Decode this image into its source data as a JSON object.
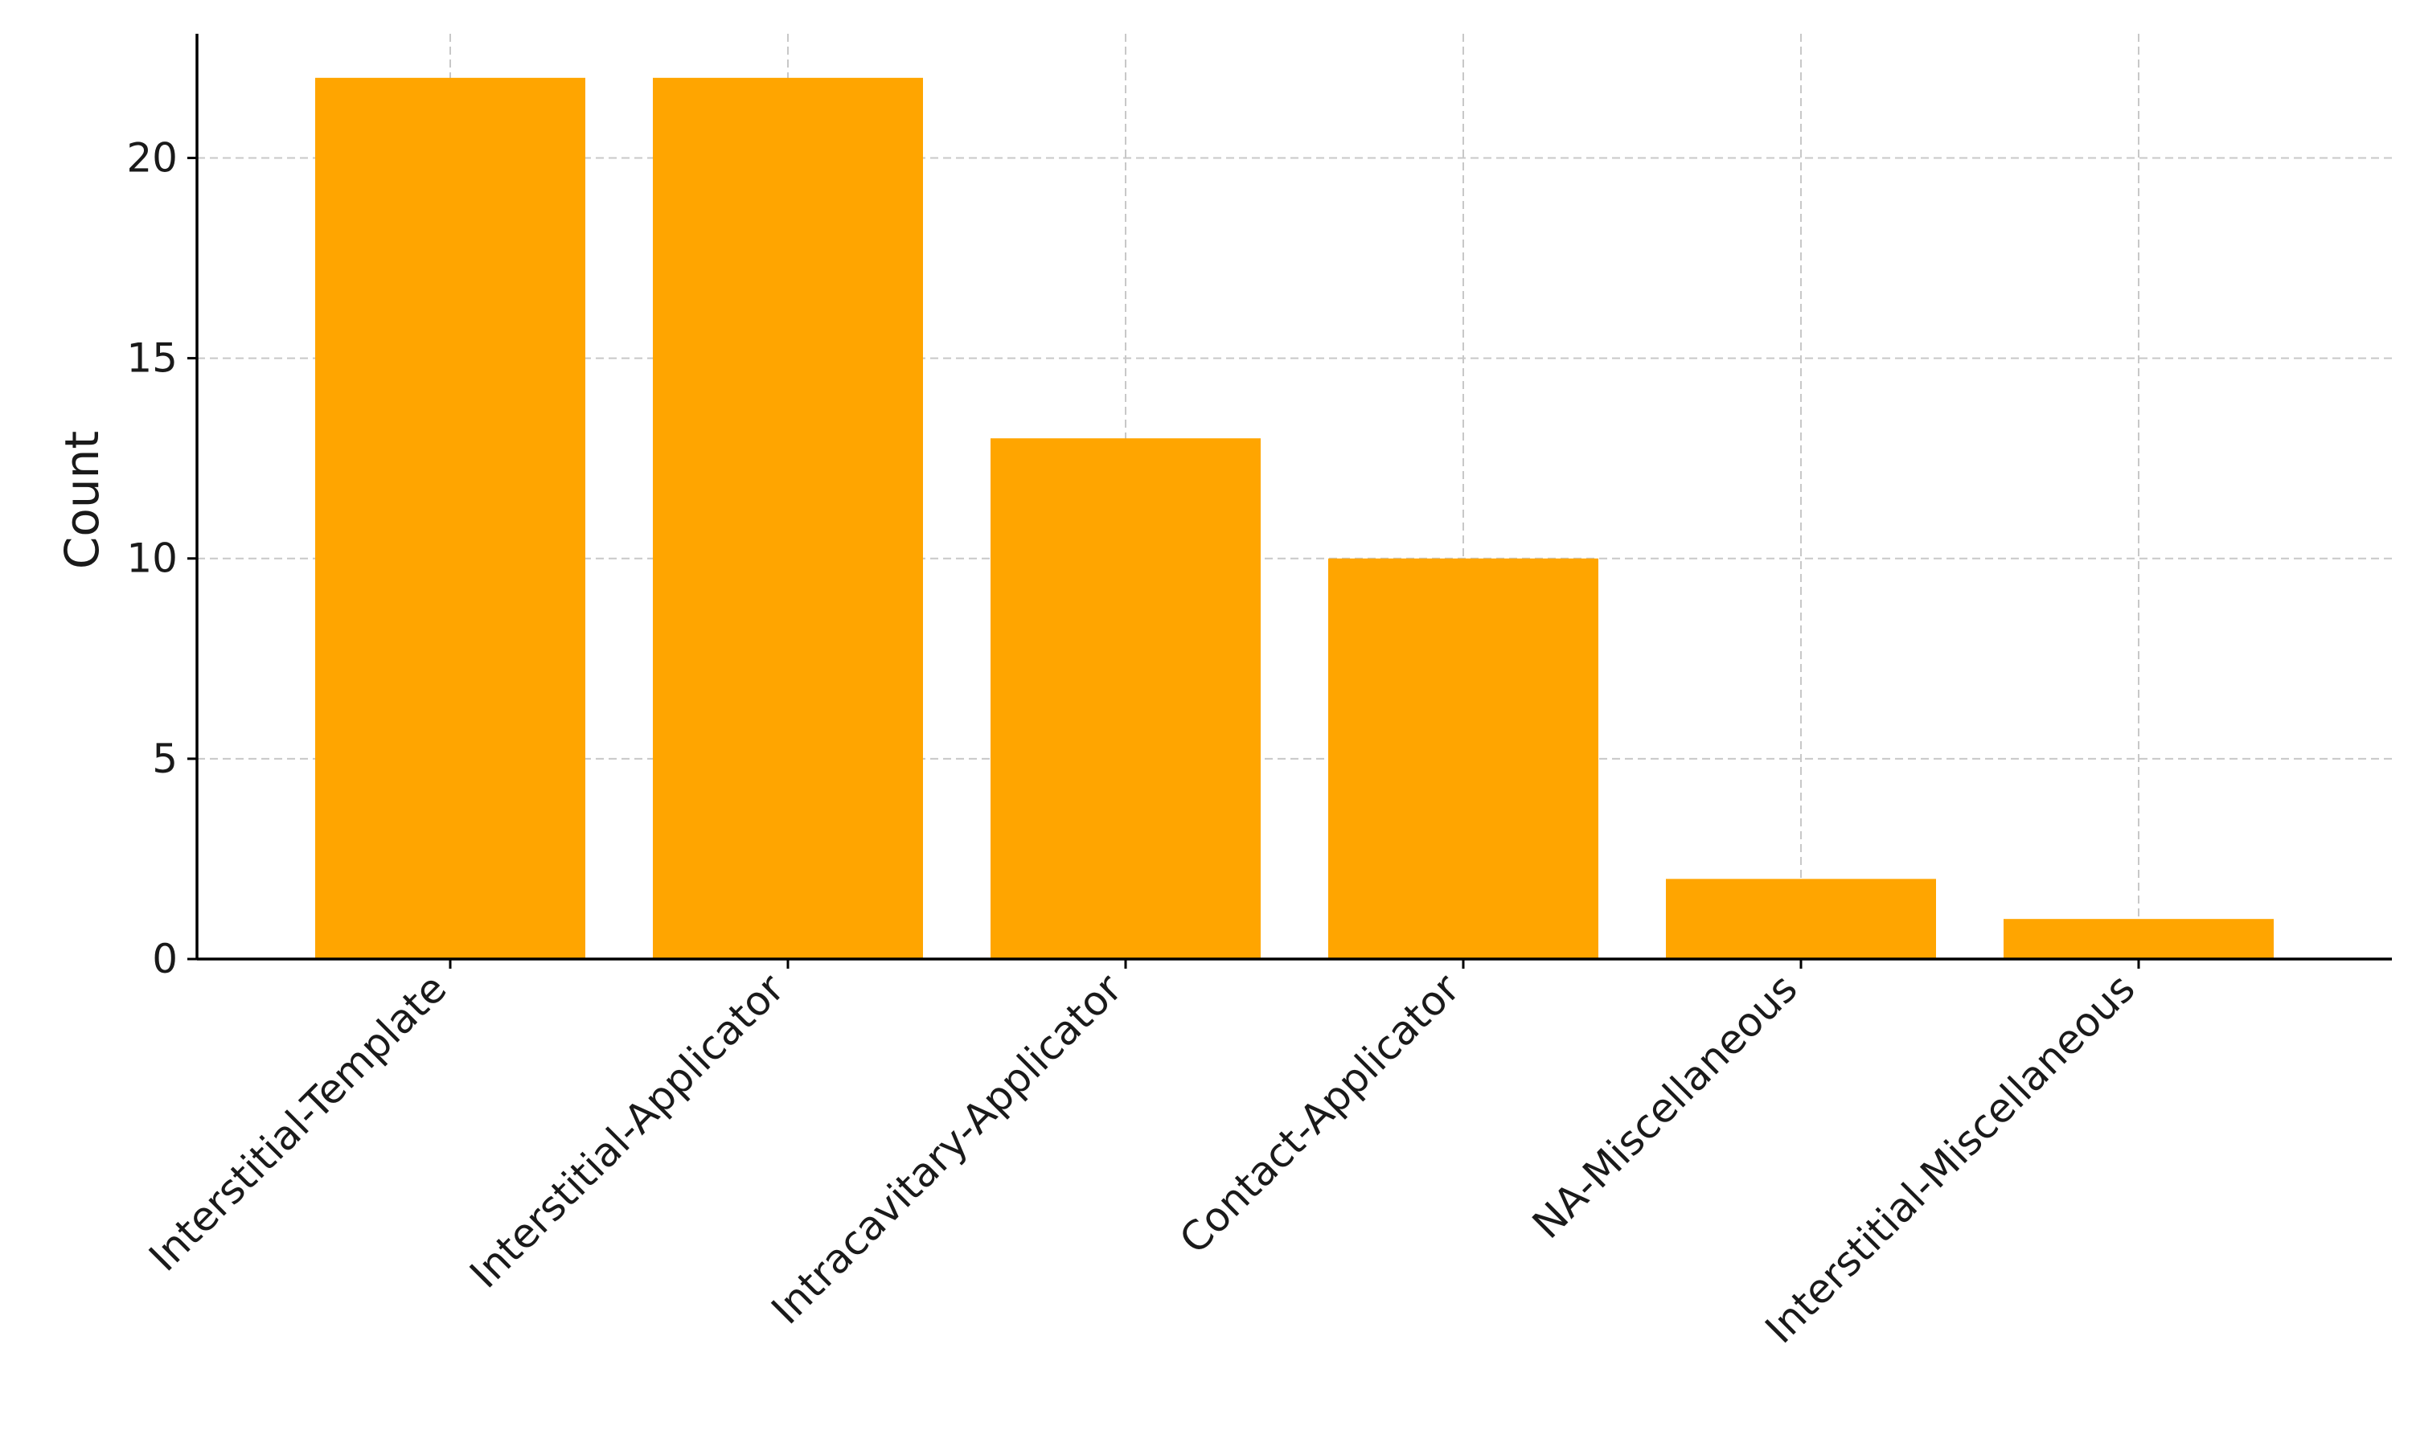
{
  "chart_data": {
    "type": "bar",
    "title": "",
    "xlabel": "",
    "ylabel": "Count",
    "categories": [
      "Interstitial-Template",
      "Interstitial-Applicator",
      "Intracavitary-Applicator",
      "Contact-Applicator",
      "NA-Miscellaneous",
      "Interstitial-Miscellaneous"
    ],
    "values": [
      22,
      22,
      13,
      10,
      2,
      1
    ],
    "ylim": [
      0,
      23.1
    ],
    "yticks": [
      0,
      5,
      10,
      15,
      20
    ],
    "grid": true,
    "bar_color": "#ffa500",
    "grid_color": "#c8c8c8",
    "axis_color": "#000000"
  }
}
